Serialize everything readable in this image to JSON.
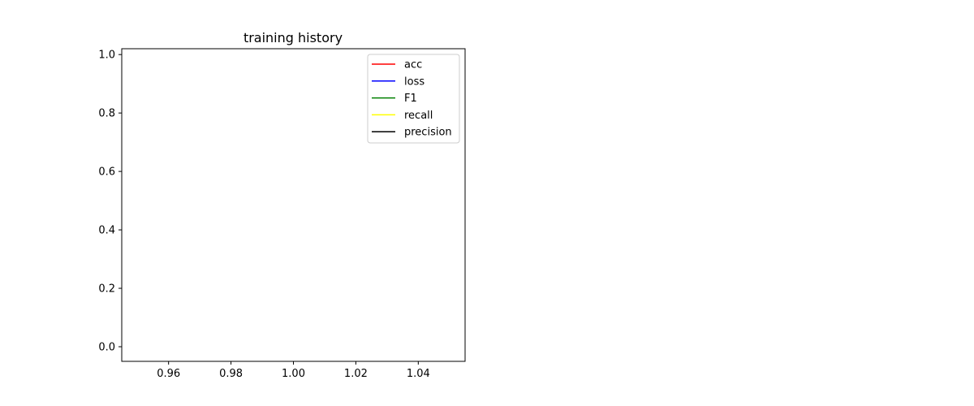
{
  "chart_data": {
    "type": "line",
    "title": "training history",
    "xlabel": "",
    "ylabel": "",
    "xlim": [
      0.945,
      1.055
    ],
    "ylim": [
      -0.05,
      1.02
    ],
    "x_ticks": [
      0.96,
      0.98,
      1.0,
      1.02,
      1.04
    ],
    "x_tick_labels": [
      "0.96",
      "0.98",
      "1.00",
      "1.02",
      "1.04"
    ],
    "y_ticks": [
      0.0,
      0.2,
      0.4,
      0.6,
      0.8,
      1.0
    ],
    "y_tick_labels": [
      "0.0",
      "0.2",
      "0.4",
      "0.6",
      "0.8",
      "1.0"
    ],
    "grid": false,
    "legend_position": "upper right",
    "series": [
      {
        "name": "acc",
        "color": "#ff0000",
        "x": [],
        "y": []
      },
      {
        "name": "loss",
        "color": "#0000ff",
        "x": [],
        "y": []
      },
      {
        "name": "F1",
        "color": "#008000",
        "x": [],
        "y": []
      },
      {
        "name": "recall",
        "color": "#ffff00",
        "x": [],
        "y": []
      },
      {
        "name": "precision",
        "color": "#000000",
        "x": [],
        "y": []
      }
    ]
  }
}
